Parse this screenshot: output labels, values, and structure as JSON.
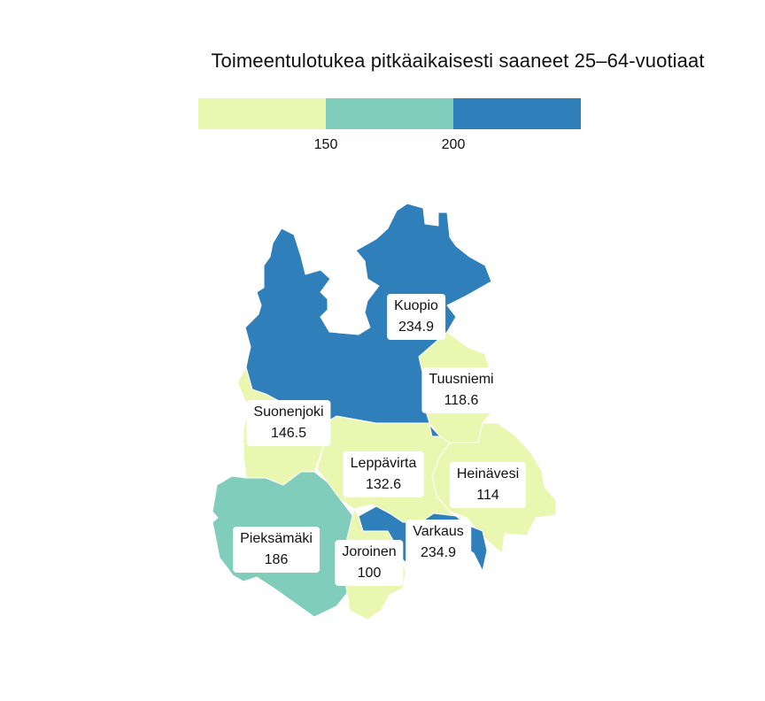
{
  "title": "Toimeentulotukea pitkäaikaisesti saaneet 25–64-vuotiaat",
  "legend": {
    "bins": [
      {
        "color": "#eaf7b1"
      },
      {
        "color": "#80cdbb"
      },
      {
        "color": "#2f7fbb"
      }
    ],
    "ticks": [
      "150",
      "200"
    ]
  },
  "municipalities": [
    {
      "name": "Kuopio",
      "value": "234.9",
      "color": "#2f7fbb"
    },
    {
      "name": "Tuusniemi",
      "value": "118.6",
      "color": "#eaf7b1"
    },
    {
      "name": "Suonenjoki",
      "value": "146.5",
      "color": "#eaf7b1"
    },
    {
      "name": "Leppävirta",
      "value": "132.6",
      "color": "#eaf7b1"
    },
    {
      "name": "Heinävesi",
      "value": "114",
      "color": "#eaf7b1"
    },
    {
      "name": "Pieksämäki",
      "value": "186",
      "color": "#80cdbb"
    },
    {
      "name": "Varkaus",
      "value": "234.9",
      "color": "#2f7fbb"
    },
    {
      "name": "Joroinen",
      "value": "100",
      "color": "#eaf7b1"
    }
  ]
}
